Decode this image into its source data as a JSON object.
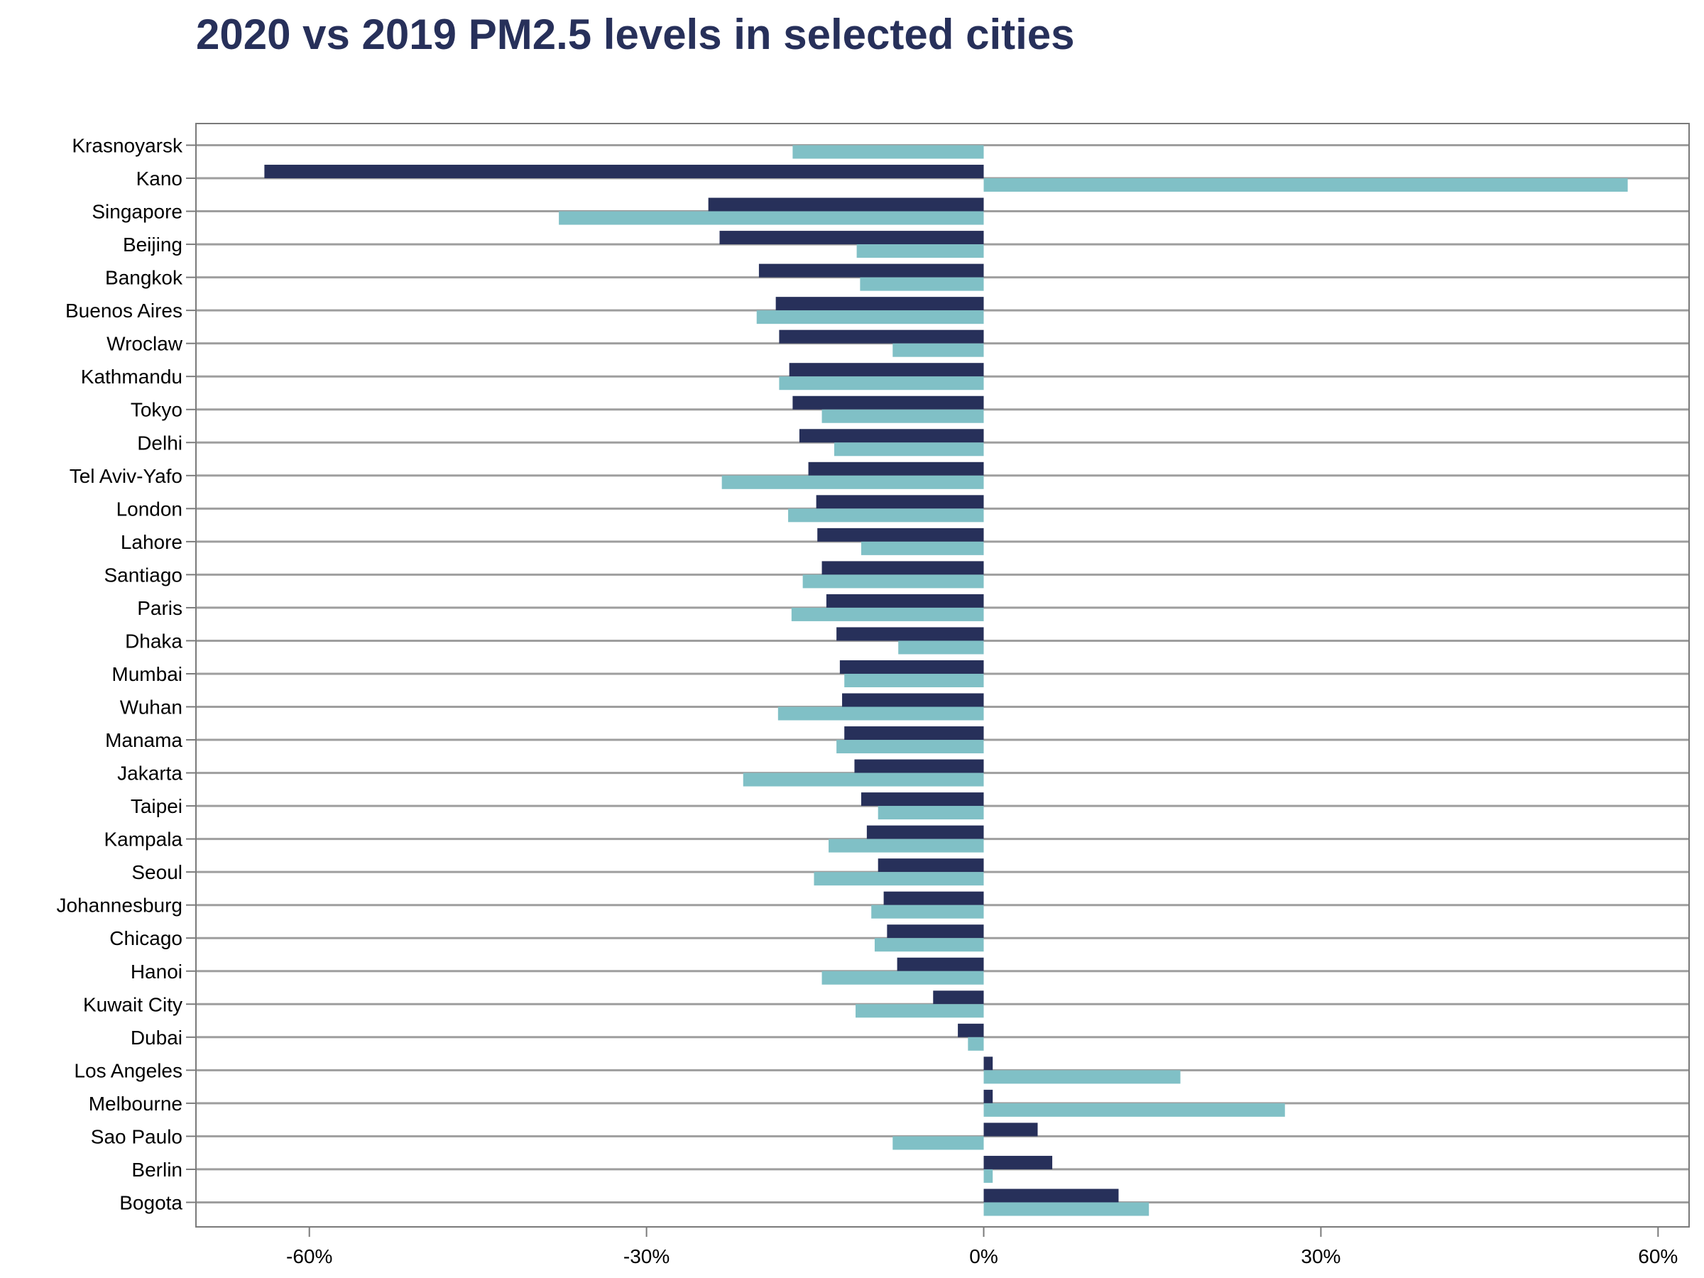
{
  "chart_data": {
    "type": "bar",
    "orientation": "horizontal",
    "title": "2020 vs 2019 PM2.5 levels in selected cities",
    "xlabel": "",
    "ylabel": "",
    "xlim": [
      -70,
      63
    ],
    "x_ticks": [
      -60,
      -30,
      0,
      30,
      60
    ],
    "x_tick_labels": [
      "-60%",
      "-30%",
      "0%",
      "30%",
      "60%"
    ],
    "grid": "horizontal lines at each category",
    "legend": "none",
    "colors": {
      "dark": "#27305a",
      "light": "#80c0c6",
      "grid": "#9e9e9e",
      "frame": "#7a7a7a"
    },
    "categories": [
      "Krasnoyarsk",
      "Kano",
      "Singapore",
      "Beijing",
      "Bangkok",
      "Buenos Aires",
      "Wroclaw",
      "Kathmandu",
      "Tokyo",
      "Delhi",
      "Tel Aviv-Yafo",
      "London",
      "Lahore",
      "Santiago",
      "Paris",
      "Dhaka",
      "Mumbai",
      "Wuhan",
      "Manama",
      "Jakarta",
      "Taipei",
      "Kampala",
      "Seoul",
      "Johannesburg",
      "Chicago",
      "Hanoi",
      "Kuwait City",
      "Dubai",
      "Los Angeles",
      "Melbourne",
      "Sao Paulo",
      "Berlin",
      "Bogota"
    ],
    "series": [
      {
        "color": "#27305a",
        "values": [
          null,
          -64,
          -24.5,
          -23.5,
          -20,
          -18.5,
          -18.2,
          -17.3,
          -17,
          -16.4,
          -15.6,
          -14.9,
          -14.8,
          -14.4,
          -14,
          -13.1,
          -12.8,
          -12.6,
          -12.4,
          -11.5,
          -10.9,
          -10.4,
          -9.4,
          -8.9,
          -8.6,
          -7.7,
          -4.5,
          -2.3,
          0.8,
          0.8,
          4.8,
          6.1,
          12
        ]
      },
      {
        "color": "#80c0c6",
        "values": [
          -17,
          57.3,
          -37.8,
          -11.3,
          -11,
          -20.2,
          -8.1,
          -18.2,
          -14.4,
          -13.3,
          -23.3,
          -17.4,
          -10.9,
          -16.1,
          -17.1,
          -7.6,
          -12.4,
          -18.3,
          -13.1,
          -21.4,
          -9.4,
          -13.8,
          -15.1,
          -10,
          -9.7,
          -14.4,
          -11.4,
          -1.4,
          17.5,
          26.8,
          -8.1,
          0.8,
          14.7
        ]
      }
    ]
  }
}
